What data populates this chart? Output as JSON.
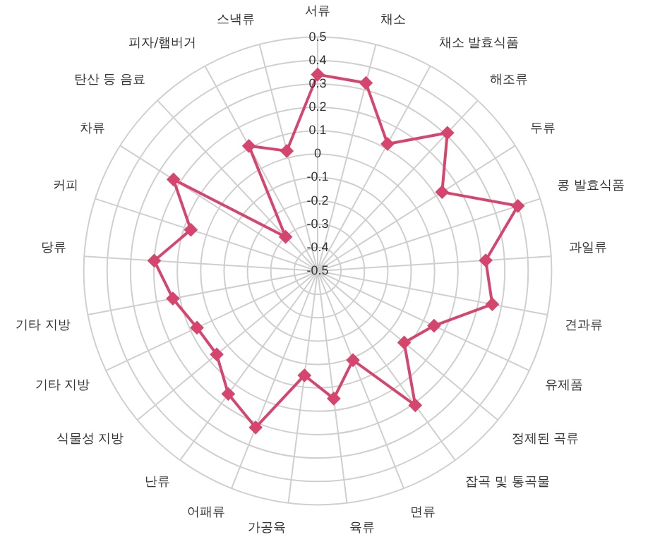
{
  "chart_data": {
    "type": "radar",
    "categories": [
      "서류",
      "채소",
      "채소 발효식품",
      "해조류",
      "두류",
      "콩 발효식품",
      "과일류",
      "견과류",
      "유제품",
      "정제된 곡류",
      "잡곡 및 통곡물",
      "면류",
      "육류",
      "가공육",
      "어패류",
      "난류",
      "식물성 지방",
      "기타 지방",
      "기타 지방",
      "당류",
      "커피",
      "차류",
      "탄산 등 음료",
      "피자/햄버거",
      "스낵류"
    ],
    "series": [
      {
        "color": "#d6456e",
        "values": [
          0.34,
          0.33,
          0.12,
          0.31,
          0.13,
          0.4,
          0.22,
          0.26,
          0.05,
          -0.02,
          0.21,
          -0.09,
          0.05,
          -0.05,
          0.22,
          0.15,
          0.06,
          0.07,
          0.13,
          0.2,
          0.07,
          0.23,
          -0.3,
          0.11,
          0.03
        ]
      }
    ],
    "ylim": [
      -0.5,
      0.5
    ],
    "yticks": [
      -0.5,
      -0.4,
      -0.3,
      -0.2,
      -0.1,
      0,
      0.1,
      0.2,
      0.3,
      0.4,
      0.5
    ],
    "grid": true,
    "legend": false,
    "marker": "diamond",
    "line_style": "solid"
  }
}
